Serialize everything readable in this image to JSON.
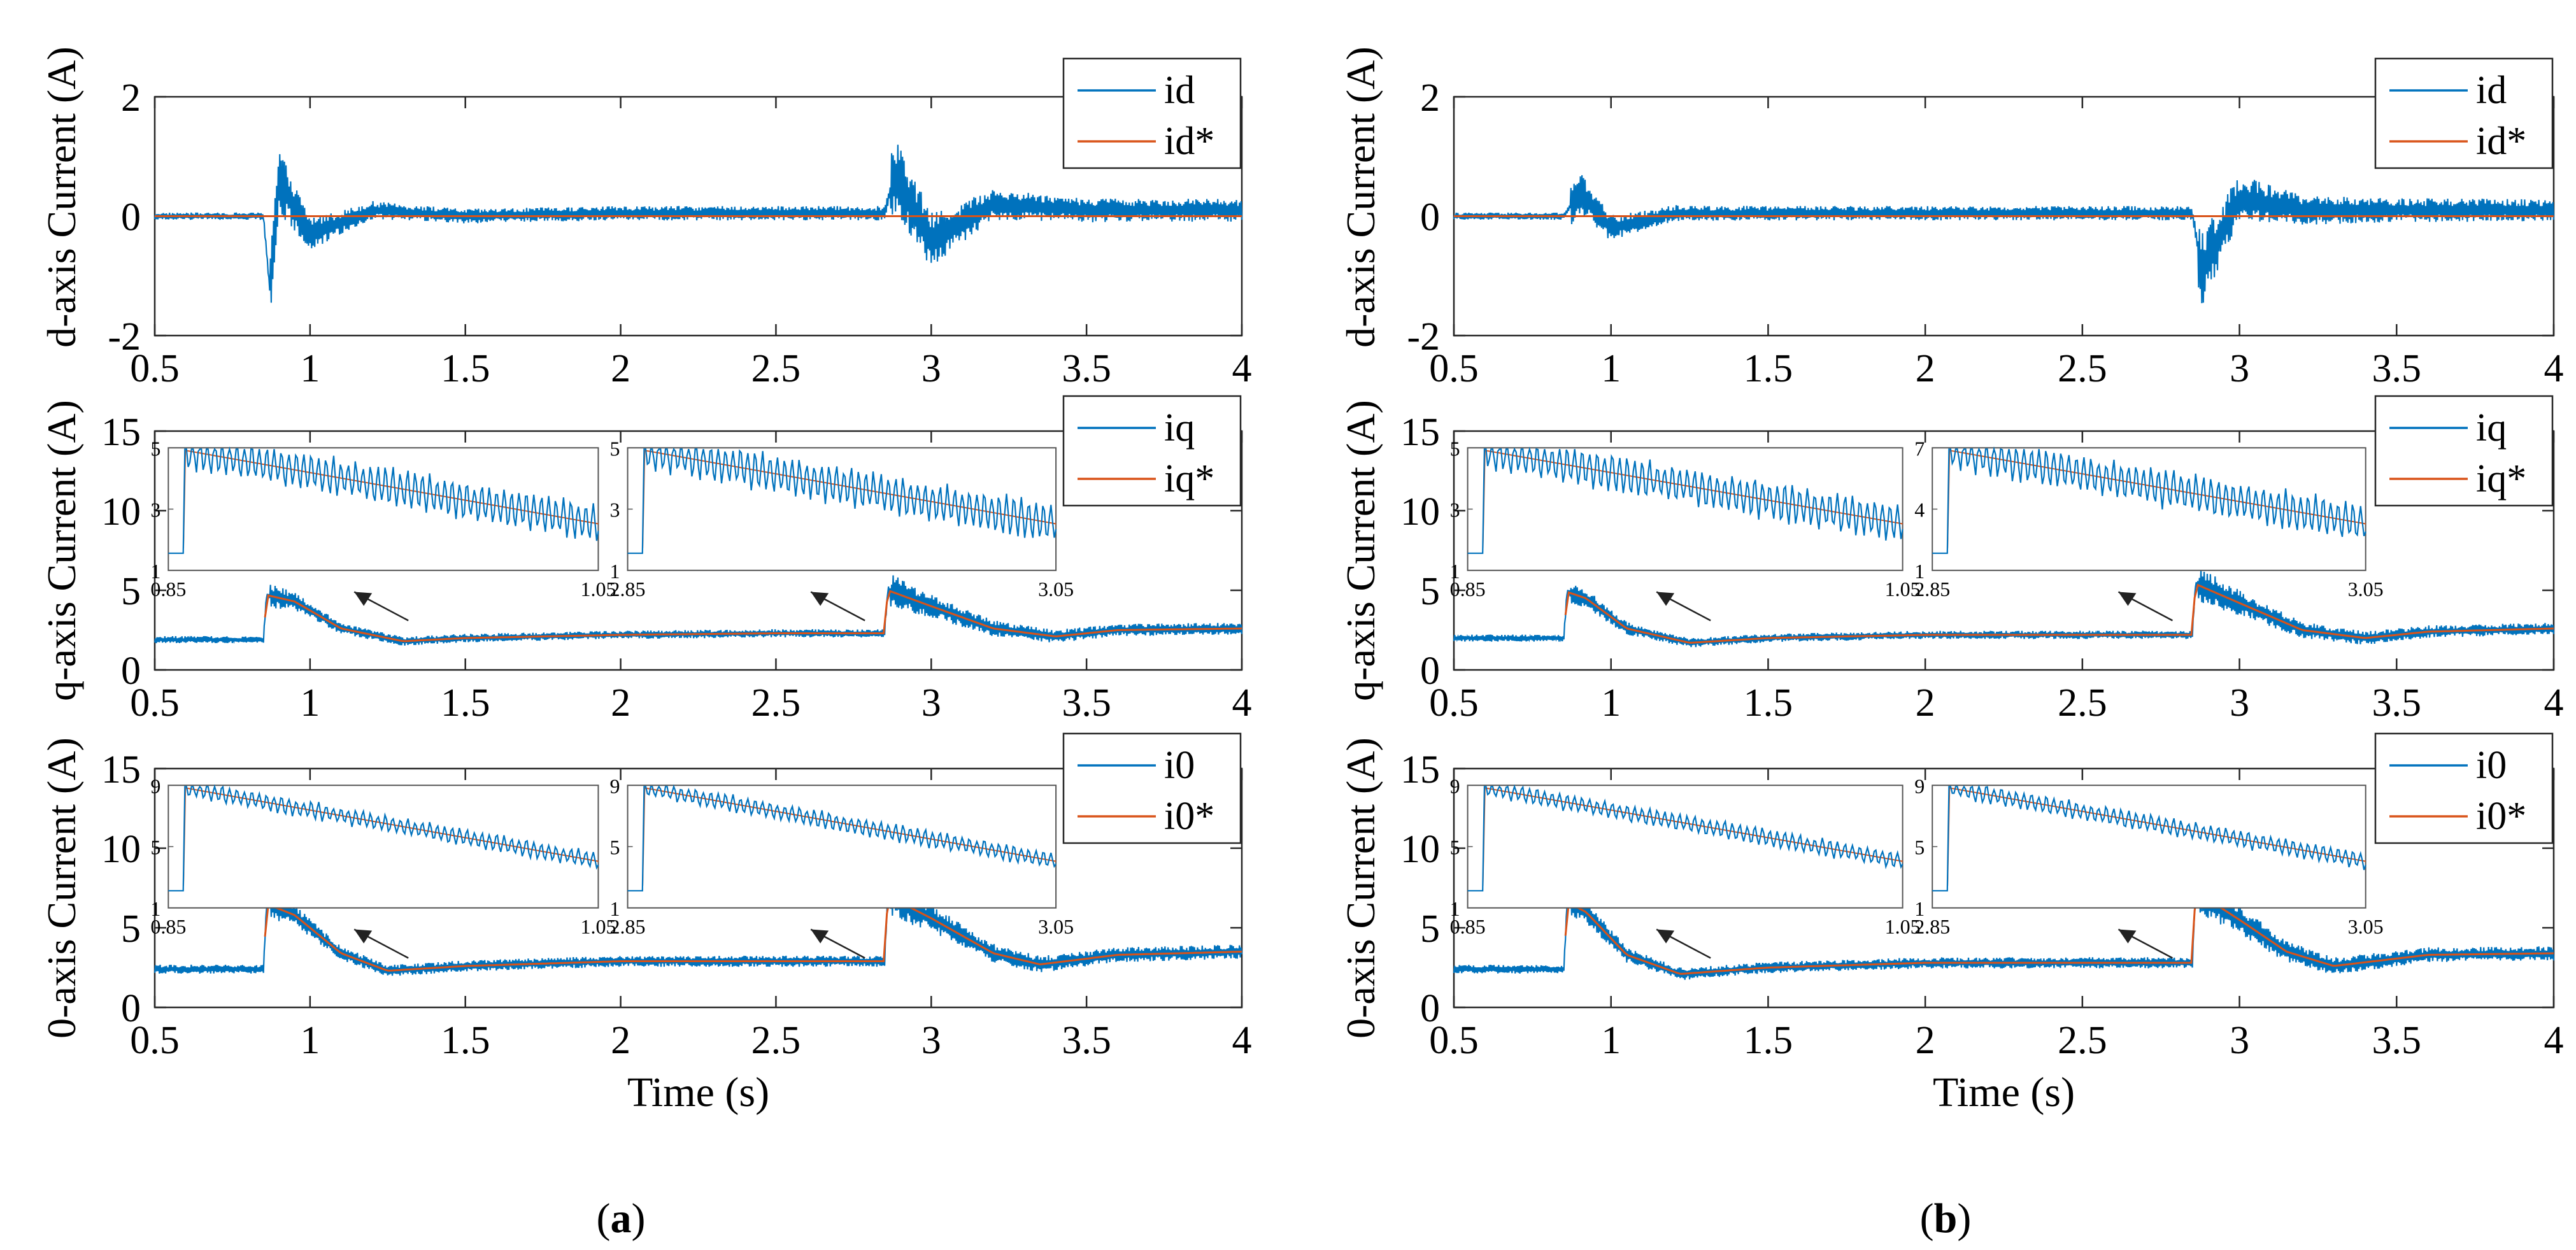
{
  "figure": {
    "time_label": "Time (s)",
    "color_measured": "#0072BD",
    "color_reference": "#D95319"
  },
  "panels": [
    {
      "caption_open": "(",
      "caption_letter": "a",
      "caption_close": ")",
      "plots": [
        {
          "id": "a-d",
          "ylabel": "d-axis Current (A)",
          "legend": [
            "id",
            "id*"
          ],
          "yticks": [
            "-2",
            "0",
            "2"
          ],
          "xticks": [
            "0.5",
            "1",
            "1.5",
            "2",
            "2.5",
            "3",
            "3.5",
            "4"
          ],
          "insets": []
        },
        {
          "id": "a-q",
          "ylabel": "q-axis Current (A)",
          "legend": [
            "iq",
            "iq*"
          ],
          "yticks": [
            "0",
            "5",
            "10",
            "15"
          ],
          "xticks": [
            "0.5",
            "1",
            "1.5",
            "2",
            "2.5",
            "3",
            "3.5",
            "4"
          ],
          "insets": [
            {
              "yticks": [
                "1",
                "3",
                "5"
              ],
              "xticks": [
                "0.85",
                "1.05"
              ]
            },
            {
              "yticks": [
                "1",
                "3",
                "5"
              ],
              "xticks": [
                "2.85",
                "3.05"
              ]
            }
          ]
        },
        {
          "id": "a-0",
          "ylabel": "0-axis Current (A)",
          "legend": [
            "i0",
            "i0*"
          ],
          "yticks": [
            "0",
            "5",
            "10",
            "15"
          ],
          "xticks": [
            "0.5",
            "1",
            "1.5",
            "2",
            "2.5",
            "3",
            "3.5",
            "4"
          ],
          "insets": [
            {
              "yticks": [
                "1",
                "5",
                "9"
              ],
              "xticks": [
                "0.85",
                "1.05"
              ]
            },
            {
              "yticks": [
                "1",
                "5",
                "9"
              ],
              "xticks": [
                "2.85",
                "3.05"
              ]
            }
          ]
        }
      ]
    },
    {
      "caption_open": "(",
      "caption_letter": "b",
      "caption_close": ")",
      "plots": [
        {
          "id": "b-d",
          "ylabel": "d-axis Current (A)",
          "legend": [
            "id",
            "id*"
          ],
          "yticks": [
            "-2",
            "0",
            "2"
          ],
          "xticks": [
            "0.5",
            "1",
            "1.5",
            "2",
            "2.5",
            "3",
            "3.5",
            "4"
          ],
          "insets": []
        },
        {
          "id": "b-q",
          "ylabel": "q-axis Current (A)",
          "legend": [
            "iq",
            "iq*"
          ],
          "yticks": [
            "0",
            "5",
            "10",
            "15"
          ],
          "xticks": [
            "0.5",
            "1",
            "1.5",
            "2",
            "2.5",
            "3",
            "3.5",
            "4"
          ],
          "insets": [
            {
              "yticks": [
                "1",
                "3",
                "5"
              ],
              "xticks": [
                "0.85",
                "1.05"
              ]
            },
            {
              "yticks": [
                "1",
                "4",
                "7"
              ],
              "xticks": [
                "2.85",
                "3.05"
              ]
            }
          ]
        },
        {
          "id": "b-0",
          "ylabel": "0-axis Current (A)",
          "legend": [
            "i0",
            "i0*"
          ],
          "yticks": [
            "0",
            "5",
            "10",
            "15"
          ],
          "xticks": [
            "0.5",
            "1",
            "1.5",
            "2",
            "2.5",
            "3",
            "3.5",
            "4"
          ],
          "insets": [
            {
              "yticks": [
                "1",
                "5",
                "9"
              ],
              "xticks": [
                "0.85",
                "1.05"
              ]
            },
            {
              "yticks": [
                "1",
                "5",
                "9"
              ],
              "xticks": [
                "2.85",
                "3.05"
              ]
            }
          ]
        }
      ]
    }
  ],
  "chart_data": [
    {
      "type": "line",
      "panel": "a",
      "title": "",
      "xlabel": "",
      "ylabel": "d-axis Current (A)",
      "xlim": [
        0.5,
        4
      ],
      "ylim": [
        -2,
        2
      ],
      "series": [
        {
          "name": "id",
          "x": [
            0.5,
            0.85,
            0.87,
            0.9,
            1.0,
            1.2,
            1.5,
            2.0,
            2.5,
            2.85,
            2.88,
            3.0,
            3.2,
            3.5,
            4.0
          ],
          "values": [
            0.0,
            0.0,
            -1.2,
            0.6,
            -0.3,
            0.1,
            0.0,
            0.05,
            0.05,
            0.05,
            0.7,
            -0.4,
            0.2,
            0.1,
            0.1
          ]
        },
        {
          "name": "id*",
          "x": [
            0.5,
            4.0
          ],
          "values": [
            0.0,
            0.0
          ]
        }
      ],
      "legend": [
        "id",
        "id*"
      ]
    },
    {
      "type": "line",
      "panel": "a",
      "title": "",
      "xlabel": "",
      "ylabel": "q-axis Current (A)",
      "xlim": [
        0.5,
        4
      ],
      "ylim": [
        0,
        15
      ],
      "series": [
        {
          "name": "iq",
          "x": [
            0.5,
            0.85,
            0.86,
            0.95,
            1.1,
            1.3,
            1.5,
            2.0,
            2.5,
            2.85,
            2.86,
            3.0,
            3.2,
            3.4,
            3.6,
            4.0
          ],
          "values": [
            1.9,
            1.9,
            4.7,
            4.3,
            2.6,
            1.8,
            2.0,
            2.2,
            2.3,
            2.3,
            5.0,
            4.0,
            2.6,
            2.1,
            2.5,
            2.6
          ]
        },
        {
          "name": "iq*",
          "x": [
            0.5,
            0.85,
            0.86,
            0.95,
            1.1,
            1.3,
            1.5,
            2.0,
            2.5,
            2.85,
            2.86,
            3.0,
            3.2,
            3.4,
            3.6,
            4.0
          ],
          "values": [
            1.9,
            1.9,
            4.7,
            4.3,
            2.6,
            1.8,
            2.0,
            2.2,
            2.3,
            2.3,
            5.0,
            4.0,
            2.6,
            2.1,
            2.5,
            2.6
          ]
        }
      ],
      "legend": [
        "iq",
        "iq*"
      ]
    },
    {
      "type": "line",
      "panel": "a",
      "title": "",
      "xlabel": "Time (s)",
      "ylabel": "0-axis Current (A)",
      "xlim": [
        0.5,
        4
      ],
      "ylim": [
        0,
        15
      ],
      "series": [
        {
          "name": "i0",
          "x": [
            0.5,
            0.85,
            0.86,
            0.95,
            1.1,
            1.25,
            1.5,
            2.0,
            2.5,
            2.85,
            2.86,
            3.0,
            3.2,
            3.35,
            3.6,
            4.0
          ],
          "values": [
            2.4,
            2.4,
            6.5,
            5.8,
            3.4,
            2.3,
            2.6,
            2.9,
            2.9,
            2.9,
            7.0,
            5.6,
            3.4,
            2.7,
            3.3,
            3.5
          ]
        },
        {
          "name": "i0*",
          "x": [
            0.5,
            0.85,
            0.86,
            0.95,
            1.1,
            1.25,
            1.5,
            2.0,
            2.5,
            2.85,
            2.86,
            3.0,
            3.2,
            3.35,
            3.6,
            4.0
          ],
          "values": [
            2.4,
            2.4,
            6.5,
            5.8,
            3.4,
            2.3,
            2.6,
            2.9,
            2.9,
            2.9,
            7.0,
            5.6,
            3.4,
            2.7,
            3.3,
            3.5
          ]
        }
      ],
      "legend": [
        "i0",
        "i0*"
      ]
    },
    {
      "type": "line",
      "panel": "b",
      "title": "",
      "xlabel": "",
      "ylabel": "d-axis Current (A)",
      "xlim": [
        0.5,
        4
      ],
      "ylim": [
        -2,
        2
      ],
      "series": [
        {
          "name": "id",
          "x": [
            0.5,
            0.85,
            0.9,
            1.0,
            1.2,
            1.5,
            2.0,
            2.5,
            2.85,
            2.88,
            3.0,
            3.2,
            3.5,
            4.0
          ],
          "values": [
            0.0,
            0.0,
            0.4,
            -0.2,
            0.05,
            0.05,
            0.05,
            0.05,
            0.05,
            -0.9,
            0.3,
            0.1,
            0.1,
            0.1
          ]
        },
        {
          "name": "id*",
          "x": [
            0.5,
            4.0
          ],
          "values": [
            0.0,
            0.0
          ]
        }
      ],
      "legend": [
        "id",
        "id*"
      ]
    },
    {
      "type": "line",
      "panel": "b",
      "title": "",
      "xlabel": "",
      "ylabel": "q-axis Current (A)",
      "xlim": [
        0.5,
        4
      ],
      "ylim": [
        0,
        15
      ],
      "series": [
        {
          "name": "iq",
          "x": [
            0.5,
            0.85,
            0.86,
            0.92,
            1.05,
            1.25,
            1.5,
            2.0,
            2.5,
            2.85,
            2.86,
            3.0,
            3.2,
            3.4,
            3.6,
            4.0
          ],
          "values": [
            2.0,
            2.0,
            4.9,
            4.5,
            2.6,
            1.7,
            2.0,
            2.2,
            2.2,
            2.2,
            5.4,
            4.2,
            2.5,
            2.0,
            2.4,
            2.6
          ]
        },
        {
          "name": "iq*",
          "x": [
            0.5,
            0.85,
            0.86,
            0.92,
            1.05,
            1.25,
            1.5,
            2.0,
            2.5,
            2.85,
            2.86,
            3.0,
            3.2,
            3.4,
            3.6,
            4.0
          ],
          "values": [
            2.0,
            2.0,
            4.9,
            4.5,
            2.6,
            1.7,
            2.0,
            2.2,
            2.2,
            2.2,
            5.4,
            4.2,
            2.5,
            2.0,
            2.4,
            2.6
          ]
        }
      ],
      "legend": [
        "iq",
        "iq*"
      ]
    },
    {
      "type": "line",
      "panel": "b",
      "title": "",
      "xlabel": "Time (s)",
      "ylabel": "0-axis Current (A)",
      "xlim": [
        0.5,
        4
      ],
      "ylim": [
        0,
        15
      ],
      "series": [
        {
          "name": "i0",
          "x": [
            0.5,
            0.85,
            0.86,
            0.92,
            1.05,
            1.22,
            1.5,
            2.0,
            2.5,
            2.85,
            2.86,
            3.0,
            3.15,
            3.3,
            3.6,
            4.0
          ],
          "values": [
            2.4,
            2.4,
            6.6,
            6.0,
            3.3,
            2.1,
            2.5,
            2.8,
            2.8,
            2.8,
            7.3,
            5.5,
            3.5,
            2.6,
            3.3,
            3.4
          ]
        },
        {
          "name": "i0*",
          "x": [
            0.5,
            0.85,
            0.86,
            0.92,
            1.05,
            1.22,
            1.5,
            2.0,
            2.5,
            2.85,
            2.86,
            3.0,
            3.15,
            3.3,
            3.6,
            4.0
          ],
          "values": [
            2.4,
            2.4,
            6.6,
            6.0,
            3.3,
            2.1,
            2.5,
            2.8,
            2.8,
            2.8,
            7.3,
            5.5,
            3.5,
            2.6,
            3.3,
            3.4
          ]
        }
      ],
      "legend": [
        "i0",
        "i0*"
      ]
    }
  ]
}
